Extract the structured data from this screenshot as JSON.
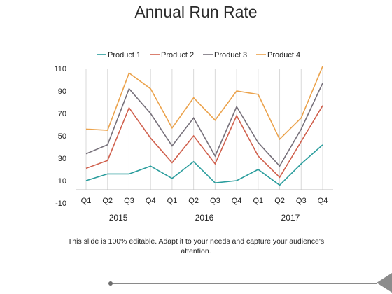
{
  "slide": {
    "title": "Annual Run Rate",
    "footer": "This slide is 100% editable. Adapt it to your needs and capture your audience's attention."
  },
  "chart_data": {
    "type": "line",
    "title": "",
    "x": [
      "Q1",
      "Q2",
      "Q3",
      "Q4",
      "Q1",
      "Q2",
      "Q3",
      "Q4",
      "Q1",
      "Q2",
      "Q3",
      "Q4"
    ],
    "groups": [
      {
        "label": "2015",
        "from": 0,
        "to": 3
      },
      {
        "label": "2016",
        "from": 4,
        "to": 7
      },
      {
        "label": "2017",
        "from": 8,
        "to": 11
      }
    ],
    "yticks": [
      110,
      90,
      70,
      50,
      30,
      10,
      -10
    ],
    "ylim": [
      -10,
      110
    ],
    "legend_position": "top",
    "grid": "vertical",
    "series": [
      {
        "name": "Product 1",
        "color": "#2a9d9d",
        "values": [
          10,
          16,
          16,
          23,
          12,
          27,
          8,
          10,
          20,
          6,
          25,
          42
        ]
      },
      {
        "name": "Product 2",
        "color": "#d0604d",
        "values": [
          21,
          28,
          75,
          48,
          26,
          50,
          25,
          68,
          32,
          13,
          45,
          77
        ]
      },
      {
        "name": "Product 3",
        "color": "#76707a",
        "values": [
          34,
          42,
          92,
          70,
          41,
          66,
          32,
          76,
          44,
          23,
          56,
          97
        ]
      },
      {
        "name": "Product 4",
        "color": "#eba24b",
        "values": [
          56,
          55,
          106,
          92,
          57,
          84,
          64,
          90,
          87,
          47,
          66,
          112
        ]
      }
    ]
  }
}
